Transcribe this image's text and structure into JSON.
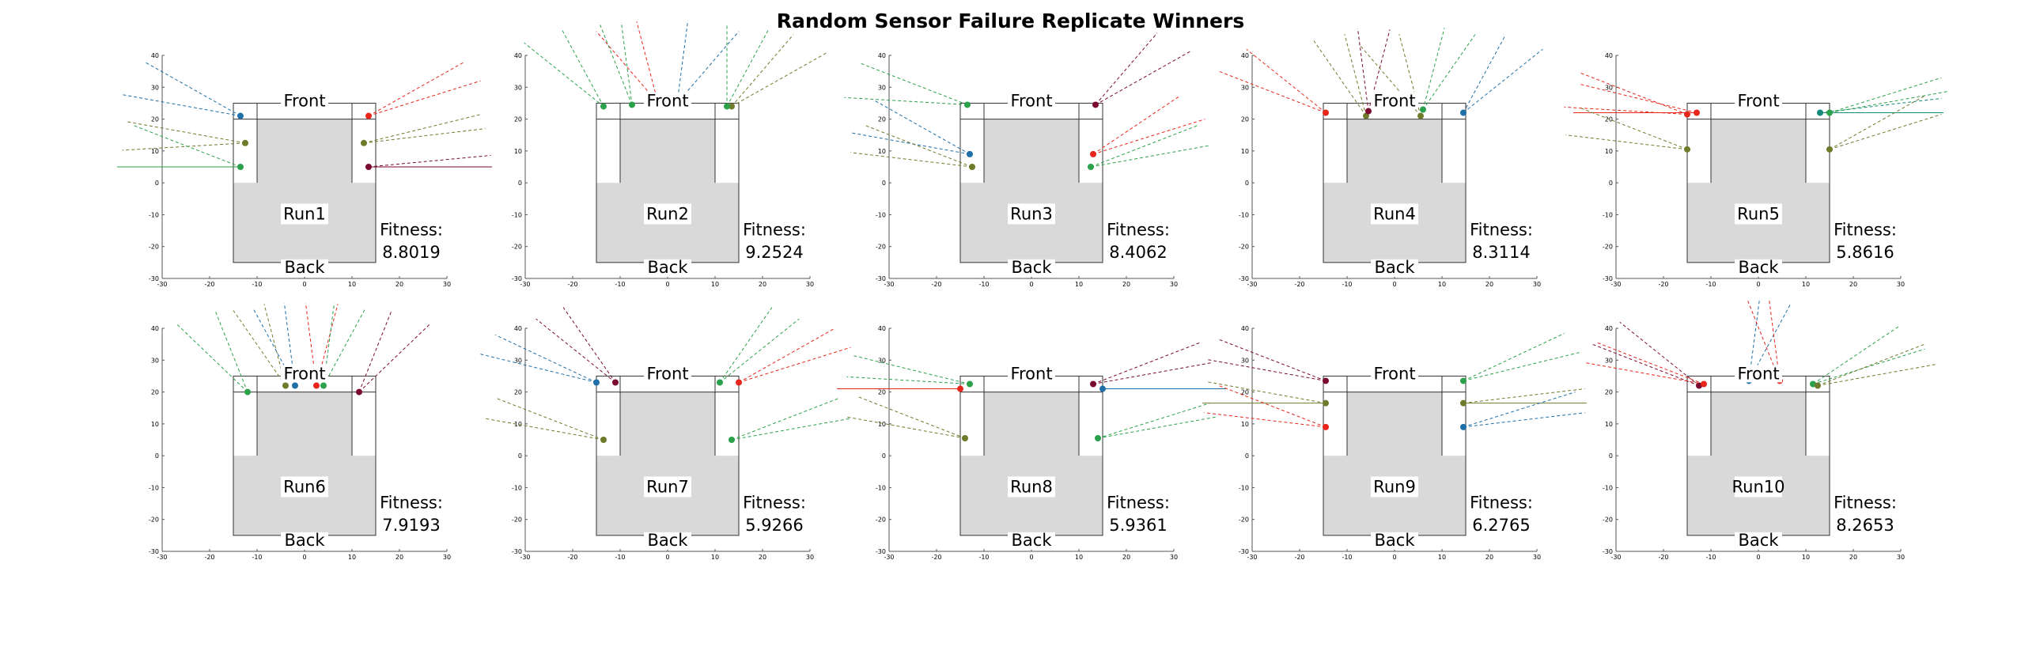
{
  "figure": {
    "title": "Random Sensor Failure Replicate Winners"
  },
  "common": {
    "front_label": "Front",
    "back_label": "Back",
    "fitness_label": "Fitness:",
    "x_ticks": [
      "-30",
      "-20",
      "-10",
      "0",
      "10",
      "20",
      "30"
    ],
    "y_ticks": [
      "40",
      "30",
      "20",
      "10",
      "0",
      "-10",
      "-20",
      "-30"
    ],
    "xlim": [
      -30,
      30
    ],
    "ylim": [
      -30,
      40
    ],
    "body_outline": {
      "x": [
        -15,
        15
      ],
      "y": [
        -25,
        25
      ]
    },
    "grey_cabin": {
      "x": [
        -10,
        10
      ],
      "y": [
        0,
        20
      ]
    },
    "grey_rear": {
      "x": [
        -15,
        15
      ],
      "y": [
        -25,
        0
      ]
    }
  },
  "colors": {
    "red": "#e8261c",
    "blue": "#1f6fa8",
    "green": "#2aa14a",
    "olive": "#6f7a2a",
    "maroon": "#7a0a2e",
    "teal": "#138a7a",
    "grey": "#d9d9d9",
    "outline": "#333333"
  },
  "chart_data": [
    {
      "type": "scatter",
      "title": "Run1",
      "fitness": "8.8019",
      "sensors": [
        {
          "x": -13.5,
          "y": 21,
          "color": "blue",
          "angles": [
            140,
            165
          ]
        },
        {
          "x": -12.5,
          "y": 12.5,
          "color": "olive",
          "angles": [
            165,
            185
          ]
        },
        {
          "x": -13.5,
          "y": 5,
          "color": "green",
          "angles": [
            150,
            180
          ]
        },
        {
          "x": 13.5,
          "y": 21,
          "color": "red",
          "angles": [
            25,
            40
          ]
        },
        {
          "x": 12.5,
          "y": 12.5,
          "color": "olive",
          "angles": [
            10,
            20
          ]
        },
        {
          "x": 13.5,
          "y": 5,
          "color": "maroon",
          "angles": [
            0,
            8
          ]
        }
      ]
    },
    {
      "type": "scatter",
      "title": "Run2",
      "fitness": "9.2524",
      "sensors": [
        {
          "x": -13.5,
          "y": 24,
          "color": "green",
          "angles": [
            110,
            130
          ]
        },
        {
          "x": -7.5,
          "y": 24.5,
          "color": "green",
          "angles": [
            95,
            105
          ]
        },
        {
          "x": -2,
          "y": 25,
          "color": "red",
          "angles": [
            100,
            120
          ]
        },
        {
          "x": 2,
          "y": 25,
          "color": "blue",
          "angles": [
            60,
            85
          ]
        },
        {
          "x": 13.5,
          "y": 24,
          "color": "olive",
          "angles": [
            40,
            60
          ]
        },
        {
          "x": 12.5,
          "y": 24,
          "color": "green",
          "angles": [
            70,
            90
          ]
        }
      ]
    },
    {
      "type": "scatter",
      "title": "Run3",
      "fitness": "8.4062",
      "sensors": [
        {
          "x": -13.5,
          "y": 24.5,
          "color": "green",
          "angles": [
            150,
            175
          ]
        },
        {
          "x": -13,
          "y": 9,
          "color": "blue",
          "angles": [
            140,
            165
          ]
        },
        {
          "x": -12.5,
          "y": 5,
          "color": "olive",
          "angles": [
            150,
            170
          ]
        },
        {
          "x": 13.5,
          "y": 24.5,
          "color": "maroon",
          "angles": [
            40,
            60
          ]
        },
        {
          "x": 13,
          "y": 9,
          "color": "red",
          "angles": [
            25,
            45
          ]
        },
        {
          "x": 12.5,
          "y": 5,
          "color": "green",
          "angles": [
            15,
            30
          ]
        }
      ]
    },
    {
      "type": "scatter",
      "title": "Run4",
      "fitness": "8.3114",
      "sensors": [
        {
          "x": -14.5,
          "y": 22,
          "color": "red",
          "angles": [
            130,
            150
          ]
        },
        {
          "x": -6,
          "y": 21,
          "color": "olive",
          "angles": [
            100,
            115
          ]
        },
        {
          "x": -5.5,
          "y": 22.5,
          "color": "maroon",
          "angles": [
            80,
            95
          ]
        },
        {
          "x": 5.5,
          "y": 21,
          "color": "olive",
          "angles": [
            100,
            120
          ]
        },
        {
          "x": 6,
          "y": 23,
          "color": "green",
          "angles": [
            65,
            80
          ]
        },
        {
          "x": 14.5,
          "y": 22,
          "color": "blue",
          "angles": [
            50,
            70
          ]
        }
      ]
    },
    {
      "type": "scatter",
      "title": "Run5",
      "fitness": "5.8616",
      "sensors": [
        {
          "x": -15,
          "y": 21.5,
          "color": "red",
          "angles": [
            150,
            175
          ]
        },
        {
          "x": -13,
          "y": 22,
          "color": "red",
          "angles": [
            160,
            180
          ]
        },
        {
          "x": -15,
          "y": 10.5,
          "color": "olive",
          "angles": [
            150,
            170
          ]
        },
        {
          "x": 13,
          "y": 22,
          "color": "teal",
          "angles": [
            0,
            10
          ]
        },
        {
          "x": 15,
          "y": 22,
          "color": "green",
          "angles": [
            15,
            25
          ]
        },
        {
          "x": 15,
          "y": 10.5,
          "color": "olive",
          "angles": [
            25,
            40
          ]
        }
      ]
    },
    {
      "type": "scatter",
      "title": "Run6",
      "fitness": "7.9193",
      "sensors": [
        {
          "x": -12,
          "y": 20,
          "color": "green",
          "angles": [
            105,
            125
          ]
        },
        {
          "x": -4,
          "y": 22,
          "color": "olive",
          "angles": [
            100,
            115
          ]
        },
        {
          "x": -2,
          "y": 22,
          "color": "blue",
          "angles": [
            95,
            110
          ]
        },
        {
          "x": 2.5,
          "y": 22,
          "color": "red",
          "angles": [
            80,
            95
          ]
        },
        {
          "x": 4,
          "y": 22,
          "color": "green",
          "angles": [
            70,
            85
          ]
        },
        {
          "x": 11.5,
          "y": 20,
          "color": "maroon",
          "angles": [
            55,
            75
          ]
        }
      ]
    },
    {
      "type": "scatter",
      "title": "Run7",
      "fitness": "5.9266",
      "sensors": [
        {
          "x": -15,
          "y": 23,
          "color": "blue",
          "angles": [
            145,
            160
          ]
        },
        {
          "x": -11,
          "y": 23,
          "color": "maroon",
          "angles": [
            115,
            130
          ]
        },
        {
          "x": -13.5,
          "y": 5,
          "color": "olive",
          "angles": [
            150,
            165
          ]
        },
        {
          "x": 11,
          "y": 23,
          "color": "green",
          "angles": [
            50,
            65
          ]
        },
        {
          "x": 15,
          "y": 23,
          "color": "red",
          "angles": [
            25,
            40
          ]
        },
        {
          "x": 13.5,
          "y": 5,
          "color": "green",
          "angles": [
            15,
            30
          ]
        }
      ]
    },
    {
      "type": "scatter",
      "title": "Run8",
      "fitness": "5.9361",
      "sensors": [
        {
          "x": -15,
          "y": 21,
          "color": "red",
          "angles": [
            180,
            180
          ]
        },
        {
          "x": -13,
          "y": 22.5,
          "color": "green",
          "angles": [
            160,
            175
          ]
        },
        {
          "x": -14,
          "y": 5.5,
          "color": "olive",
          "angles": [
            150,
            165
          ]
        },
        {
          "x": 13,
          "y": 22.5,
          "color": "maroon",
          "angles": [
            15,
            30
          ]
        },
        {
          "x": 15,
          "y": 21,
          "color": "blue",
          "angles": [
            0,
            0
          ]
        },
        {
          "x": 14,
          "y": 5.5,
          "color": "green",
          "angles": [
            15,
            25
          ]
        }
      ]
    },
    {
      "type": "scatter",
      "title": "Run9",
      "fitness": "6.2765",
      "sensors": [
        {
          "x": -14.5,
          "y": 23.5,
          "color": "maroon",
          "angles": [
            150,
            165
          ]
        },
        {
          "x": -14.5,
          "y": 16.5,
          "color": "olive",
          "angles": [
            165,
            180
          ]
        },
        {
          "x": -14.5,
          "y": 9,
          "color": "red",
          "angles": [
            150,
            170
          ]
        },
        {
          "x": 14.5,
          "y": 23.5,
          "color": "green",
          "angles": [
            20,
            35
          ]
        },
        {
          "x": 14.5,
          "y": 16.5,
          "color": "olive",
          "angles": [
            0,
            10
          ]
        },
        {
          "x": 14.5,
          "y": 9,
          "color": "blue",
          "angles": [
            10,
            25
          ]
        }
      ]
    },
    {
      "type": "scatter",
      "title": "Run10",
      "fitness": "8.2653",
      "sensors": [
        {
          "x": -12.5,
          "y": 22,
          "color": "maroon",
          "angles": [
            130,
            150
          ]
        },
        {
          "x": -11.5,
          "y": 22.5,
          "color": "red",
          "angles": [
            150,
            165
          ]
        },
        {
          "x": -2,
          "y": 23.5,
          "color": "blue",
          "angles": [
            70,
            85
          ]
        },
        {
          "x": 4.5,
          "y": 23.5,
          "color": "red",
          "angles": [
            95,
            105
          ]
        },
        {
          "x": 11.5,
          "y": 22.5,
          "color": "green",
          "angles": [
            25,
            45
          ]
        },
        {
          "x": 12.5,
          "y": 22,
          "color": "olive",
          "angles": [
            15,
            30
          ]
        }
      ]
    }
  ]
}
